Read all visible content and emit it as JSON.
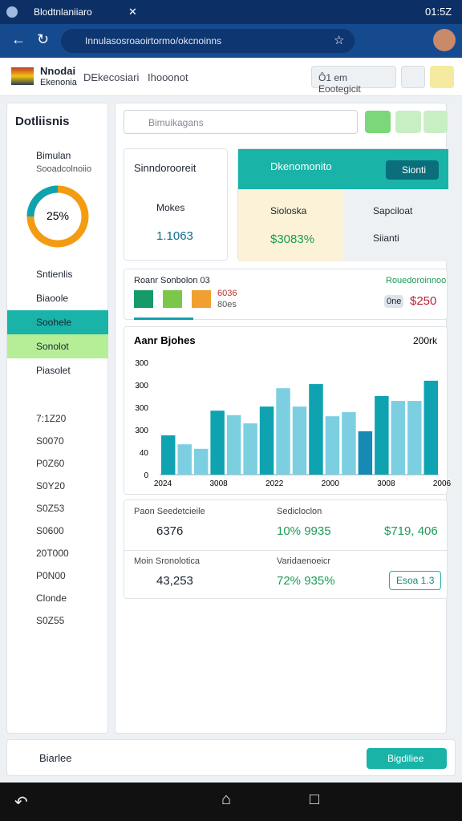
{
  "browser": {
    "tab_title": "Blodtnlaniiaro",
    "time": "01:5Z",
    "url": "Innulasosroaoirtormo/okcnoinns"
  },
  "header": {
    "brand": "Nnodai",
    "brand_sub": "Ekenonia",
    "tabs": [
      "DEkecosiari",
      "Ihooonot"
    ],
    "button": "Ô1 em Eootegicit"
  },
  "sidebar": {
    "title": "Dotliisnis",
    "section": "Bimulan",
    "section_sub": "Sooadcolnoiio",
    "donut": {
      "value": 25,
      "label": "25%"
    },
    "menu": [
      "Sntienlis",
      "Biaoole",
      "Soohele",
      "Sonolot",
      "Piasolet"
    ],
    "items": [
      "7:1Z20",
      "S0070",
      "P0Z60",
      "S0Y20",
      "S0Z53",
      "S0600",
      "20T000",
      "P0N00",
      "Clonde",
      "S0Z55"
    ]
  },
  "search": {
    "placeholder": "Bimuikagans"
  },
  "cards": {
    "left": {
      "title": "Sinndorooreit",
      "label": "Mokes",
      "value": "1.1063"
    },
    "right": {
      "title": "Dkenomonito",
      "button": "Sionti",
      "cells": [
        "Sioloska",
        "$3083%",
        "Sapciloat",
        "Siianti"
      ]
    },
    "strip": {
      "left": "Roanr Sonbolon 03",
      "right": "Rouedoroinnoo",
      "note1": "6036",
      "note2": "80es",
      "badge": "0ne",
      "amount": "$250"
    }
  },
  "chart": {
    "title": "Aanr Bjohes",
    "period": "200rk",
    "y_labels": [
      "300",
      "300",
      "300",
      "300",
      "40",
      "0"
    ],
    "x_labels": [
      "2024",
      "3008",
      "2022",
      "2000",
      "3008",
      "2006"
    ],
    "ylim": [
      0,
      300
    ],
    "values": [
      105,
      81,
      69,
      171,
      159,
      137,
      182,
      231,
      182,
      242,
      156,
      167,
      116,
      210,
      197,
      197,
      251
    ],
    "colors": [
      "#0fa3b1",
      "#7ccfe0",
      "#7ccfe0",
      "#0fa3b1",
      "#7ccfe0",
      "#7ccfe0",
      "#0fa3b1",
      "#7ccfe0",
      "#7ccfe0",
      "#0fa3b1",
      "#7ccfe0",
      "#7ccfe0",
      "#1689b5",
      "#0fa3b1",
      "#7ccfe0",
      "#7ccfe0",
      "#0fa3b1"
    ]
  },
  "stats": [
    {
      "label": "Paon Seedetcieile",
      "value": "6376",
      "label2": "Sedicloclon",
      "value2": "10% 9935",
      "value3": "$719, 406"
    },
    {
      "label": "Moin Sronolotica",
      "value": "43,253",
      "label2": "Varidaenoeicr",
      "value2": "72% 935%",
      "value3": "Esoa 1.3"
    }
  ],
  "footer": {
    "left": "Biarlee",
    "button": "Bigdiliee"
  }
}
